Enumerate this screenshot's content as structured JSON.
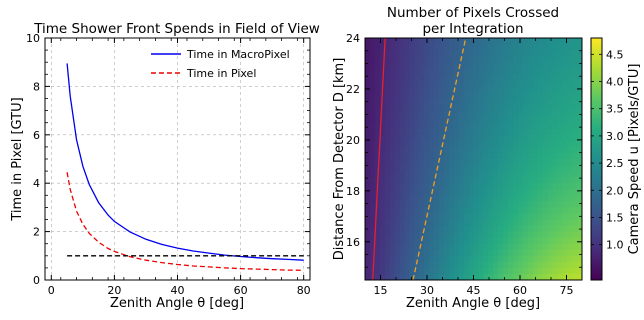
{
  "chart_data": [
    {
      "type": "line",
      "title": "Time Shower Front Spends in Field of View",
      "xlabel": "Zenith Angle θ [deg]",
      "ylabel": "Time in Pixel [GTU]",
      "xlim": [
        -2,
        82
      ],
      "ylim": [
        0,
        10
      ],
      "xticks": [
        0,
        20,
        40,
        60,
        80
      ],
      "yticks": [
        0,
        2,
        4,
        6,
        8,
        10
      ],
      "grid": true,
      "legend": "top-right",
      "series": [
        {
          "name": "Time in MacroPixel",
          "color": "#0000ee",
          "style": "solid",
          "x": [
            5,
            6,
            8,
            10,
            12,
            15,
            18,
            20,
            25,
            30,
            35,
            40,
            45,
            50,
            55,
            60,
            65,
            70,
            75,
            80
          ],
          "y": [
            8.95,
            7.6,
            5.8,
            4.7,
            3.95,
            3.2,
            2.68,
            2.42,
            1.98,
            1.68,
            1.47,
            1.32,
            1.2,
            1.11,
            1.03,
            0.97,
            0.92,
            0.88,
            0.85,
            0.82
          ]
        },
        {
          "name": "Time in Pixel",
          "color": "#ee0000",
          "style": "dashed",
          "x": [
            5,
            6,
            8,
            10,
            12,
            15,
            18,
            20,
            25,
            30,
            35,
            40,
            45,
            50,
            55,
            60,
            65,
            70,
            75,
            80
          ],
          "y": [
            4.45,
            3.75,
            2.85,
            2.3,
            1.93,
            1.56,
            1.3,
            1.18,
            0.96,
            0.82,
            0.72,
            0.64,
            0.58,
            0.54,
            0.5,
            0.47,
            0.45,
            0.43,
            0.41,
            0.4
          ]
        },
        {
          "name": "",
          "color": "#000000",
          "style": "dashed",
          "x": [
            5,
            80
          ],
          "y": [
            1,
            1
          ]
        }
      ]
    },
    {
      "type": "heatmap",
      "title": "Number of Pixels Crossed\nper Integration",
      "xlabel": "Zenith Angle θ [deg]",
      "ylabel": "Distance From Detector D [km]",
      "xlim": [
        10,
        80
      ],
      "ylim": [
        14.5,
        24
      ],
      "xticks": [
        15,
        30,
        45,
        60,
        75
      ],
      "yticks": [
        16,
        18,
        20,
        22,
        24
      ],
      "colorbar": {
        "label": "Camera Speed u [Pixels/GTU]",
        "range": [
          0.35,
          4.8
        ],
        "ticks": [
          1.0,
          1.5,
          2.0,
          2.5,
          3.0,
          3.5,
          4.0,
          4.5
        ],
        "colormap": "viridis"
      },
      "contours": [
        {
          "color": "#e8202a",
          "style": "solid",
          "x": [
            12.5,
            16.5
          ],
          "y": [
            14.5,
            24
          ]
        },
        {
          "color": "#f0a020",
          "style": "dashed",
          "x": [
            25.5,
            42.5
          ],
          "y": [
            14.5,
            24
          ]
        }
      ]
    }
  ]
}
